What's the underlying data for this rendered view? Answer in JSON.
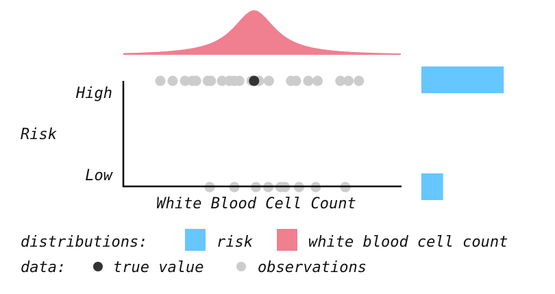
{
  "chart_data": {
    "type": "scatter",
    "x_axis_label": "White Blood Cell Count",
    "y_axis_label": "Risk",
    "y_tick_labels": [
      "High",
      "Low"
    ],
    "high_risk_observations_x": [
      0.6,
      0.8,
      1.0,
      1.12,
      1.18,
      1.37,
      1.42,
      1.6,
      1.72,
      1.8,
      1.88,
      2.08,
      2.2,
      2.36,
      2.72,
      2.8,
      3.0,
      3.15,
      3.52,
      3.65,
      3.82
    ],
    "high_risk_true_value_x": 2.12,
    "low_risk_observations_x": [
      1.4,
      1.8,
      2.15,
      2.35,
      2.55,
      2.62,
      2.85,
      3.12,
      3.6
    ],
    "wbc_distribution": {
      "center": 2.12,
      "spread": 0.42,
      "color": "#f07f90"
    },
    "risk_distribution": {
      "high": 0.72,
      "low": 0.19,
      "color": "#66c6ff"
    },
    "observation_color": "#cccccc",
    "true_value_color": "#333333"
  },
  "legend": {
    "distributions_label": "distributions:",
    "risk_label": "risk",
    "wbc_label": "white blood cell count",
    "data_label": "data:",
    "true_value_label": "true value",
    "observations_label": "observations"
  }
}
